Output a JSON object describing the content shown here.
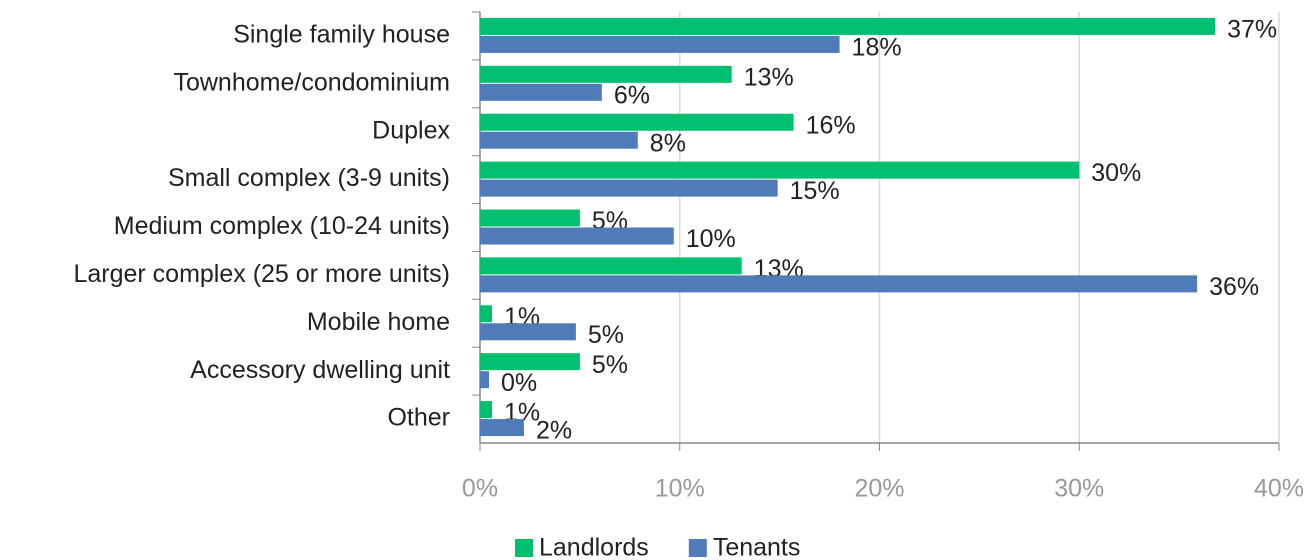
{
  "chart_data": {
    "type": "hbar",
    "categories": [
      "Single family house",
      "Townhome/condominium",
      "Duplex",
      "Small complex (3-9 units)",
      "Medium complex (10-24 units)",
      "Larger complex (25 or more units)",
      "Mobile home",
      "Accessory dwelling unit",
      "Other"
    ],
    "series": [
      {
        "name": "Landlords",
        "color": "#00bf6f",
        "values": [
          36.8,
          12.6,
          15.7,
          30,
          5,
          13.1,
          0.6,
          5,
          0.6
        ],
        "value_labels": [
          "37%",
          "13%",
          "16%",
          "30%",
          "5%",
          "13%",
          "1%",
          "5%",
          "1%"
        ]
      },
      {
        "name": "Tenants",
        "color": "#4f7bb8",
        "values": [
          18,
          6.1,
          7.9,
          14.9,
          9.7,
          35.9,
          4.8,
          0.45,
          2.2
        ],
        "value_labels": [
          "18%",
          "6%",
          "8%",
          "15%",
          "10%",
          "36%",
          "5%",
          "0%",
          "2%"
        ]
      }
    ],
    "xlim": [
      0,
      40
    ],
    "xticks": [
      {
        "value": 0,
        "label": "0%"
      },
      {
        "value": 10,
        "label": "10%"
      },
      {
        "value": 20,
        "label": "20%"
      },
      {
        "value": 30,
        "label": "30%"
      },
      {
        "value": 40,
        "label": "40%"
      }
    ],
    "grid": true,
    "legend": "bottom"
  }
}
